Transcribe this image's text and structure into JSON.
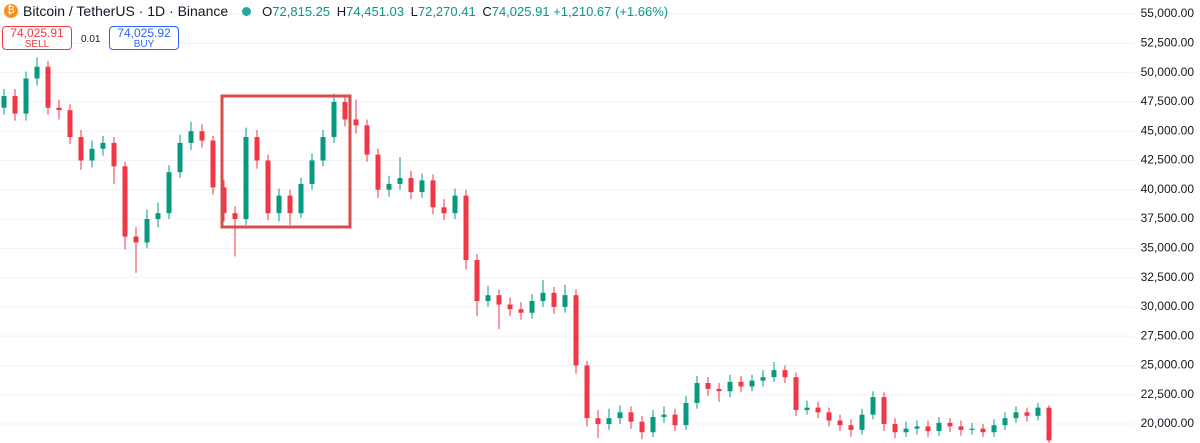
{
  "chart_data": {
    "type": "candlestick",
    "title": "Bitcoin / TetherUS · 1D · Binance",
    "ohlc_header": {
      "o_label": "O",
      "o": "72,815.25",
      "h_label": "H",
      "h": "74,451.03",
      "l_label": "L",
      "l": "72,270.41",
      "c_label": "C",
      "c": "74,025.91",
      "change": "+1,210.67 (+1.66%)"
    },
    "sell": {
      "price": "74,025.91",
      "label": "SELL"
    },
    "spread": "0.01",
    "buy": {
      "price": "74,025.92",
      "label": "BUY"
    },
    "up_color": "#089981",
    "down_color": "#f23645",
    "grid": true,
    "ylim": [
      18380,
      56200
    ],
    "yticks": [
      {
        "value": 20000,
        "label": "20,000.00"
      },
      {
        "value": 22500,
        "label": "22,500.00"
      },
      {
        "value": 25000,
        "label": "25,000.00"
      },
      {
        "value": 27500,
        "label": "27,500.00"
      },
      {
        "value": 30000,
        "label": "30,000.00"
      },
      {
        "value": 32500,
        "label": "32,500.00"
      },
      {
        "value": 35000,
        "label": "35,000.00"
      },
      {
        "value": 37500,
        "label": "37,500.00"
      },
      {
        "value": 40000,
        "label": "40,000.00"
      },
      {
        "value": 42500,
        "label": "42,500.00"
      },
      {
        "value": 45000,
        "label": "45,000.00"
      },
      {
        "value": 47500,
        "label": "47,500.00"
      },
      {
        "value": 50000,
        "label": "50,000.00"
      },
      {
        "value": 52500,
        "label": "52,500.00"
      },
      {
        "value": 55000,
        "label": "55,000.00"
      }
    ],
    "open": [
      47000,
      48000,
      46500,
      49500,
      50500,
      47000,
      46800,
      44500,
      42500,
      43500,
      44000,
      42000,
      36000,
      35500,
      37500,
      38000,
      41500,
      44000,
      45000,
      44200,
      40200,
      38000,
      37500,
      44500,
      42500,
      38000,
      39500,
      38000,
      40500,
      42500,
      44500,
      47500,
      46000,
      45500,
      43000,
      40000,
      40500,
      41000,
      39800,
      40800,
      38500,
      38000,
      39500,
      34000,
      30500,
      31000,
      30200,
      29800,
      29500,
      30500,
      31200,
      30000,
      31000,
      25000,
      20500,
      20000,
      20500,
      21000,
      20200,
      19300,
      20600,
      20800,
      19900,
      21800,
      23500,
      23000,
      22800,
      23600,
      23200,
      23700,
      24000,
      24600,
      24000,
      21200,
      21400,
      21000,
      20300,
      19900,
      19500,
      20800,
      22300,
      20000,
      19300,
      19600,
      19800,
      19400,
      20100,
      19800,
      19500,
      19600,
      19300,
      19900,
      20500,
      21000,
      20700,
      21400
    ],
    "high": [
      48600,
      48600,
      50100,
      51300,
      51000,
      47700,
      47300,
      45100,
      44200,
      44600,
      44500,
      42400,
      36800,
      38300,
      38900,
      42100,
      44700,
      45800,
      45600,
      44600,
      40800,
      38600,
      45300,
      45100,
      43000,
      40100,
      40000,
      41000,
      43100,
      45100,
      48200,
      48000,
      47700,
      46000,
      43500,
      41200,
      42800,
      41600,
      41400,
      41300,
      39200,
      40100,
      40000,
      34500,
      31800,
      31500,
      30800,
      30400,
      31100,
      32300,
      31700,
      31900,
      31500,
      25400,
      21200,
      21300,
      21600,
      21500,
      20700,
      21200,
      21500,
      21300,
      22400,
      24100,
      24000,
      23500,
      24200,
      24100,
      24200,
      24600,
      25300,
      25000,
      24400,
      22000,
      21900,
      21400,
      20800,
      20400,
      21300,
      22800,
      22700,
      20500,
      20200,
      20300,
      20300,
      20600,
      20500,
      20300,
      20100,
      20000,
      20400,
      21000,
      21500,
      21400,
      21800,
      21600
    ],
    "low": [
      46400,
      45900,
      45900,
      48900,
      46400,
      46000,
      43900,
      41700,
      41900,
      42900,
      40500,
      34900,
      32900,
      35000,
      36800,
      37500,
      41000,
      43400,
      43600,
      39600,
      37300,
      34300,
      37000,
      41800,
      37400,
      37300,
      37000,
      37600,
      40000,
      42000,
      44000,
      45400,
      44800,
      42400,
      39300,
      39400,
      40000,
      39200,
      39300,
      37900,
      37400,
      37500,
      33200,
      29200,
      30000,
      28100,
      29200,
      28900,
      29000,
      30000,
      29400,
      29500,
      24300,
      19800,
      18800,
      19500,
      20000,
      19600,
      18700,
      18900,
      20100,
      19400,
      19500,
      21300,
      22400,
      21900,
      22300,
      22700,
      22800,
      23200,
      23600,
      23500,
      20700,
      20800,
      20500,
      19800,
      19400,
      18900,
      19100,
      20400,
      19400,
      18800,
      18900,
      19100,
      18900,
      19000,
      19300,
      19000,
      19100,
      18900,
      18900,
      19500,
      20100,
      20200,
      20300,
      18400
    ],
    "close": [
      48000,
      46500,
      49500,
      50500,
      47000,
      46800,
      44500,
      42500,
      43500,
      44000,
      42000,
      36000,
      35500,
      37500,
      38000,
      41500,
      44000,
      45000,
      44200,
      40200,
      38000,
      37500,
      44500,
      42500,
      38000,
      39500,
      38000,
      40500,
      42500,
      44500,
      47500,
      46000,
      45500,
      43000,
      40000,
      40500,
      41000,
      39800,
      40800,
      38500,
      38000,
      39500,
      34000,
      30500,
      31000,
      30200,
      29800,
      29500,
      30500,
      31200,
      30000,
      31000,
      25000,
      20500,
      20000,
      20500,
      21000,
      20200,
      19300,
      20600,
      20800,
      19900,
      21800,
      23500,
      23000,
      22800,
      23600,
      23200,
      23700,
      24000,
      24600,
      24000,
      21200,
      21400,
      21000,
      20300,
      19900,
      19500,
      20800,
      22300,
      20000,
      19300,
      19600,
      19800,
      19400,
      20100,
      19800,
      19500,
      19600,
      19300,
      19900,
      20500,
      21000,
      20700,
      21400,
      18600
    ]
  }
}
